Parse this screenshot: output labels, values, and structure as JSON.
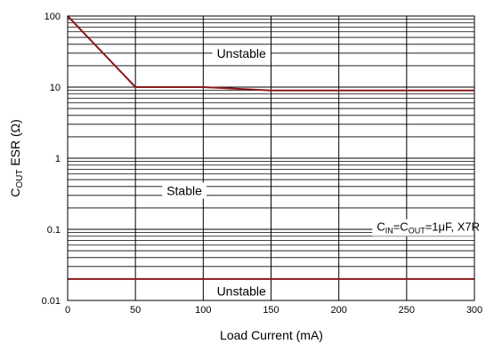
{
  "chart_data": {
    "type": "line",
    "xlabel": "Load Current (mA)",
    "ylabel": {
      "main": "C",
      "sub": "OUT",
      "rest": " ESR (Ω)"
    },
    "x_ticks": [
      0,
      50,
      100,
      150,
      200,
      250,
      300
    ],
    "y_ticks": [
      {
        "value": 0.01,
        "label": "0.01"
      },
      {
        "value": 0.1,
        "label": "0.1"
      },
      {
        "value": 1,
        "label": "1"
      },
      {
        "value": 10,
        "label": "10"
      },
      {
        "value": 100,
        "label": "100"
      }
    ],
    "xlim": [
      0,
      300
    ],
    "ylim": [
      0.01,
      100
    ],
    "y_scale": "log",
    "grid": true,
    "line_color": "#8b1a1a",
    "series": [
      {
        "x": [
          0,
          50,
          100,
          150,
          200,
          250,
          300
        ],
        "y": [
          100,
          10,
          10,
          9,
          9,
          9,
          9
        ]
      },
      {
        "x": [
          0,
          300
        ],
        "y": [
          0.02,
          0.02
        ]
      }
    ],
    "annotations": {
      "unstable_top": {
        "text": "Unstable",
        "x": 110,
        "y": 30
      },
      "stable": {
        "text": "Stable",
        "x": 73,
        "y": 0.35
      },
      "unstable_bottom": {
        "text": "Unstable",
        "x": 110,
        "y": 0.0135
      },
      "condition": {
        "parts": [
          {
            "t": "C",
            "sub": false
          },
          {
            "t": "IN",
            "sub": true
          },
          {
            "t": "=C",
            "sub": false
          },
          {
            "t": "OUT",
            "sub": true
          },
          {
            "t": "=1μF, X7R",
            "sub": false
          }
        ],
        "x": 228,
        "y": 0.11
      }
    }
  }
}
